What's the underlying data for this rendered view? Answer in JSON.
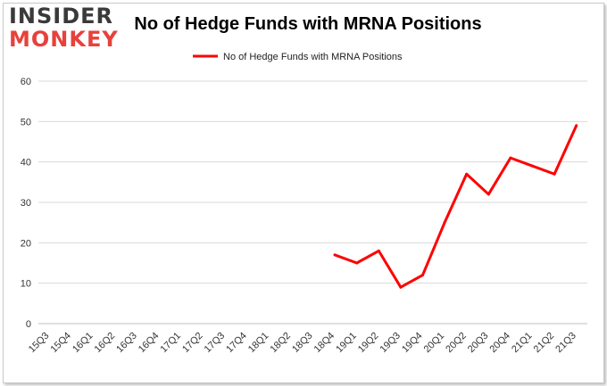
{
  "logo": {
    "line1": "INSIDER",
    "line2": "MONKEY"
  },
  "chart_data": {
    "type": "line",
    "title": "No of Hedge Funds with MRNA Positions",
    "xlabel": "",
    "ylabel": "",
    "ylim": [
      0,
      60
    ],
    "yticks": [
      0,
      10,
      20,
      30,
      40,
      50,
      60
    ],
    "grid": true,
    "legend_position": "top-center",
    "categories": [
      "15Q3",
      "15Q4",
      "16Q1",
      "16Q2",
      "16Q3",
      "16Q4",
      "17Q1",
      "17Q2",
      "17Q3",
      "17Q4",
      "18Q1",
      "18Q2",
      "18Q3",
      "18Q4",
      "19Q1",
      "19Q2",
      "19Q3",
      "19Q4",
      "20Q1",
      "20Q2",
      "20Q3",
      "20Q4",
      "21Q1",
      "21Q2",
      "21Q3"
    ],
    "series": [
      {
        "name": "No of Hedge Funds with MRNA Positions",
        "color": "#ff0000",
        "values": [
          null,
          null,
          null,
          null,
          null,
          null,
          null,
          null,
          null,
          null,
          null,
          null,
          null,
          17,
          15,
          18,
          9,
          12,
          25,
          37,
          32,
          41,
          39,
          37,
          49
        ]
      }
    ]
  }
}
